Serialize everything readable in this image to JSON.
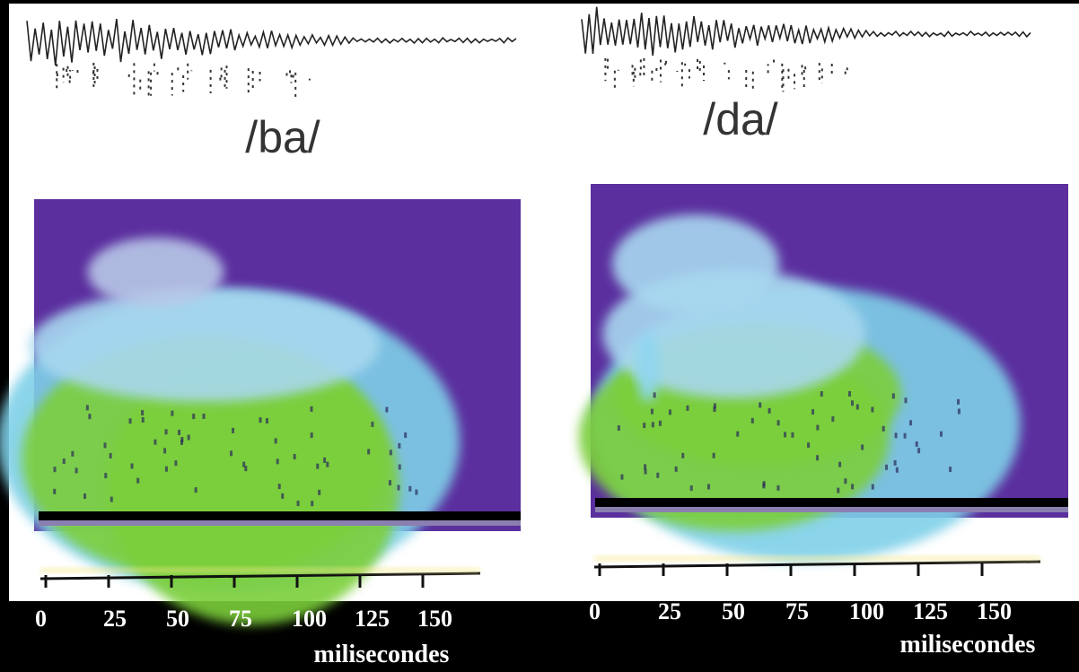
{
  "panels": [
    {
      "label": "/ba/",
      "ticks": [
        "0",
        "25",
        "50",
        "75",
        "100",
        "125",
        "150"
      ],
      "unit": "milisecondes"
    },
    {
      "label": "/da/",
      "ticks": [
        "0",
        "25",
        "50",
        "75",
        "100",
        "125",
        "150"
      ],
      "unit": "milisecondes"
    }
  ]
}
